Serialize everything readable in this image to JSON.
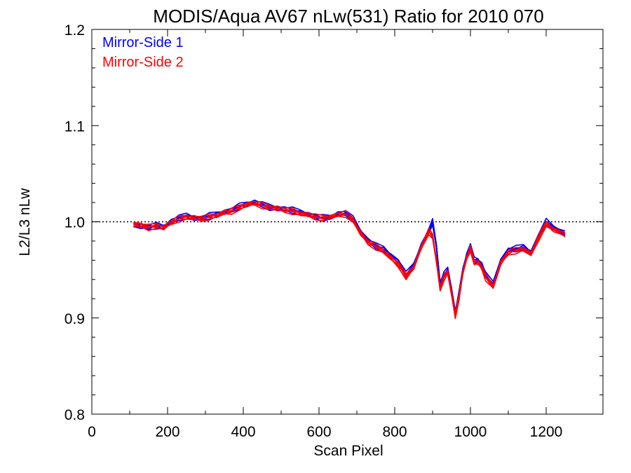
{
  "chart_data": {
    "type": "line",
    "title": "MODIS/Aqua AV67 nLw(531) Ratio for 2010 070",
    "xlabel": "Scan Pixel",
    "ylabel": "L2/L3 nLw",
    "xlim": [
      0,
      1350
    ],
    "ylim": [
      0.8,
      1.2
    ],
    "x_ticks": [
      "0",
      "200",
      "400",
      "600",
      "800",
      "1000",
      "1200"
    ],
    "y_ticks": [
      "0.8",
      "0.9",
      "1.0",
      "1.1",
      "1.2"
    ],
    "reference_line": 1.0,
    "legend_position": "top-left",
    "colors": {
      "mirror_side_1": "#0000ff",
      "mirror_side_2": "#ff0000",
      "reference": "#000000"
    },
    "x": [
      110,
      130,
      150,
      170,
      190,
      210,
      230,
      250,
      270,
      290,
      310,
      330,
      350,
      370,
      390,
      410,
      430,
      450,
      470,
      490,
      510,
      530,
      550,
      570,
      590,
      610,
      630,
      650,
      670,
      690,
      710,
      730,
      750,
      770,
      790,
      810,
      830,
      850,
      870,
      890,
      900,
      910,
      920,
      930,
      940,
      950,
      960,
      970,
      980,
      990,
      1000,
      1010,
      1020,
      1030,
      1040,
      1060,
      1080,
      1100,
      1120,
      1140,
      1160,
      1180,
      1200,
      1220,
      1250
    ],
    "series": [
      {
        "name": "Mirror-Side 1",
        "values": [
          0.997,
          0.995,
          0.994,
          0.996,
          0.995,
          1.0,
          1.004,
          1.006,
          1.004,
          1.003,
          1.006,
          1.008,
          1.01,
          1.012,
          1.016,
          1.019,
          1.02,
          1.018,
          1.015,
          1.014,
          1.013,
          1.012,
          1.01,
          1.008,
          1.005,
          1.004,
          1.005,
          1.008,
          1.009,
          1.003,
          0.99,
          0.98,
          0.975,
          0.972,
          0.965,
          0.958,
          0.945,
          0.955,
          0.975,
          0.99,
          1.0,
          0.975,
          0.935,
          0.945,
          0.95,
          0.93,
          0.905,
          0.925,
          0.95,
          0.965,
          0.975,
          0.96,
          0.96,
          0.955,
          0.945,
          0.935,
          0.96,
          0.97,
          0.972,
          0.974,
          0.968,
          0.985,
          1.0,
          0.994,
          0.988
        ]
      },
      {
        "name": "Mirror-Side 2",
        "values": [
          0.998,
          0.996,
          0.994,
          0.996,
          0.994,
          0.999,
          1.003,
          1.005,
          1.004,
          1.003,
          1.005,
          1.007,
          1.009,
          1.011,
          1.015,
          1.018,
          1.019,
          1.017,
          1.015,
          1.014,
          1.012,
          1.011,
          1.009,
          1.007,
          1.005,
          1.004,
          1.005,
          1.007,
          1.008,
          1.002,
          0.988,
          0.978,
          0.974,
          0.97,
          0.962,
          0.955,
          0.943,
          0.953,
          0.973,
          0.99,
          0.985,
          0.96,
          0.93,
          0.942,
          0.948,
          0.925,
          0.902,
          0.922,
          0.948,
          0.962,
          0.972,
          0.958,
          0.958,
          0.952,
          0.942,
          0.933,
          0.957,
          0.968,
          0.97,
          0.972,
          0.966,
          0.983,
          0.998,
          0.992,
          0.986
        ]
      }
    ]
  }
}
